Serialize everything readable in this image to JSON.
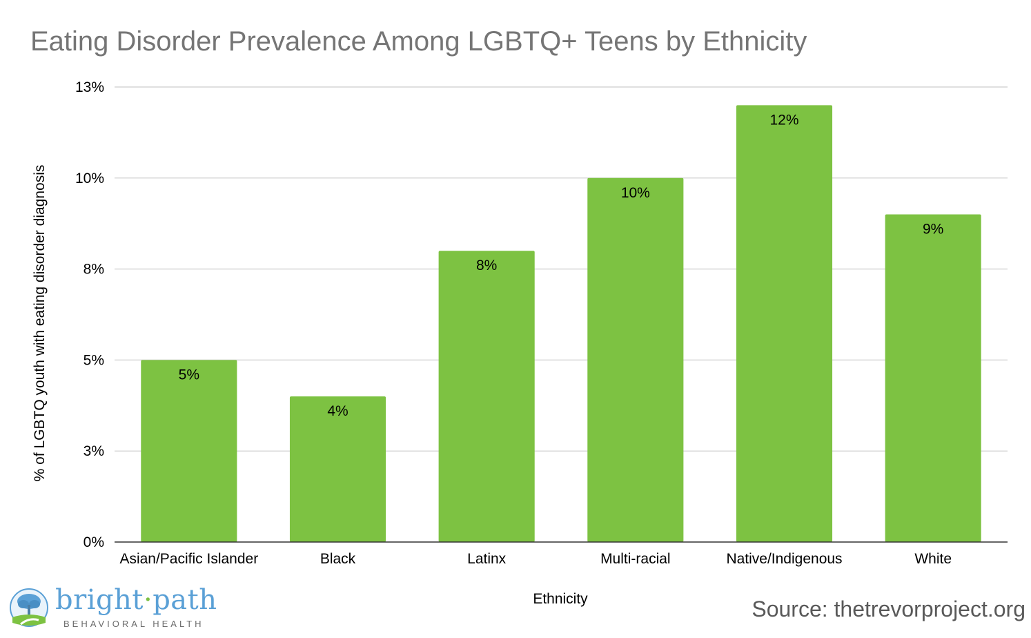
{
  "chart_data": {
    "type": "bar",
    "title": "Eating Disorder Prevalence Among LGBTQ+ Teens by Ethnicity",
    "xlabel": "Ethnicity",
    "ylabel": "% of LGBTQ youth with eating disorder diagnosis",
    "categories": [
      "Asian/Pacific Islander",
      "Black",
      "Latinx",
      "Multi-racial",
      "Native/Indigenous",
      "White"
    ],
    "values": [
      5,
      4,
      8,
      10,
      12,
      9
    ],
    "data_labels": [
      "5%",
      "4%",
      "8%",
      "10%",
      "12%",
      "9%"
    ],
    "ylim": [
      0,
      12.5
    ],
    "y_ticks": [
      0,
      2.5,
      5,
      7.5,
      10,
      12.5
    ],
    "y_tick_labels": [
      "0%",
      "3%",
      "5%",
      "8%",
      "10%",
      "13%"
    ],
    "grid": true,
    "legend": "none",
    "bar_color": "#7dc242"
  },
  "source_text": "Source: thetrevorproject.org",
  "logo": {
    "name_part1": "bright",
    "separator": "·",
    "name_part2": "path",
    "tagline": "BEHAVIORAL HEALTH"
  }
}
